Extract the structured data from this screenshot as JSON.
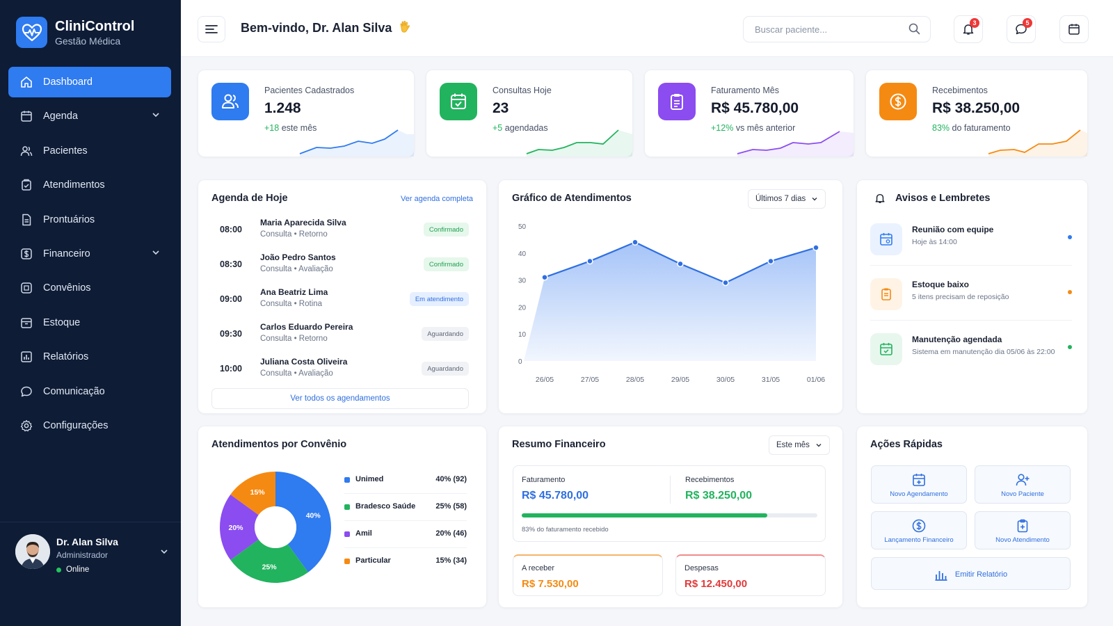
{
  "brand": {
    "name": "CliniControl",
    "subtitle": "Gestão Médica"
  },
  "nav": [
    {
      "label": "Dashboard",
      "icon": "home-icon",
      "active": true
    },
    {
      "label": "Agenda",
      "icon": "calendar-icon",
      "expandable": true
    },
    {
      "label": "Pacientes",
      "icon": "users-icon"
    },
    {
      "label": "Atendimentos",
      "icon": "clipboard-check-icon"
    },
    {
      "label": "Prontuários",
      "icon": "document-icon"
    },
    {
      "label": "Financeiro",
      "icon": "dollar-icon",
      "expandable": true
    },
    {
      "label": "Convênios",
      "icon": "card-icon"
    },
    {
      "label": "Estoque",
      "icon": "box-icon"
    },
    {
      "label": "Relatórios",
      "icon": "bar-chart-icon"
    },
    {
      "label": "Comunicação",
      "icon": "chat-icon"
    },
    {
      "label": "Configurações",
      "icon": "gear-icon"
    }
  ],
  "user": {
    "name": "Dr. Alan Silva",
    "role": "Administrador",
    "status": "Online"
  },
  "header": {
    "welcome": "Bem-vindo, Dr. Alan Silva",
    "search_placeholder": "Buscar paciente...",
    "notifications_count": "3",
    "messages_count": "5"
  },
  "stats": [
    {
      "label": "Pacientes Cadastrados",
      "value": "1.248",
      "delta": "+18",
      "delta_text": "este mês",
      "color": "#2f7bf0",
      "icon": "users-icon"
    },
    {
      "label": "Consultas Hoje",
      "value": "23",
      "delta": "+5",
      "delta_text": "agendadas",
      "color": "#22b35e",
      "icon": "calendar-check-icon"
    },
    {
      "label": "Faturamento Mês",
      "value": "R$ 45.780,00",
      "delta": "+12%",
      "delta_text": "vs mês anterior",
      "color": "#8b4cf0",
      "icon": "clipboard-icon"
    },
    {
      "label": "Recebimentos",
      "value": "R$ 38.250,00",
      "delta": "83%",
      "delta_text": "do faturamento",
      "color": "#f58a12",
      "icon": "dollar-coin-icon"
    }
  ],
  "agenda": {
    "title": "Agenda de Hoje",
    "link": "Ver agenda completa",
    "items": [
      {
        "time": "08:00",
        "name": "Maria Aparecida Silva",
        "desc": "Consulta • Retorno",
        "status": "Confirmado",
        "kind": "ok"
      },
      {
        "time": "08:30",
        "name": "João Pedro Santos",
        "desc": "Consulta • Avaliação",
        "status": "Confirmado",
        "kind": "ok"
      },
      {
        "time": "09:00",
        "name": "Ana Beatriz Lima",
        "desc": "Consulta • Rotina",
        "status": "Em atendimento",
        "kind": "atend"
      },
      {
        "time": "09:30",
        "name": "Carlos Eduardo Pereira",
        "desc": "Consulta • Retorno",
        "status": "Aguardando",
        "kind": "wait"
      },
      {
        "time": "10:00",
        "name": "Juliana Costa Oliveira",
        "desc": "Consulta • Avaliação",
        "status": "Aguardando",
        "kind": "wait"
      }
    ],
    "button": "Ver todos os agendamentos"
  },
  "atendimentos": {
    "title": "Gráfico de Atendimentos",
    "period": "Últimos 7 dias"
  },
  "avisos": {
    "title": "Avisos e Lembretes",
    "items": [
      {
        "title": "Reunião com equipe",
        "sub": "Hoje às 14:00",
        "color": "#2f7bf0",
        "bg": "#eaf2ff",
        "icon": "calendar-icon"
      },
      {
        "title": "Estoque baixo",
        "sub": "5 itens precisam de reposição",
        "color": "#f58a12",
        "bg": "#fff3e6",
        "icon": "clipboard-icon"
      },
      {
        "title": "Manutenção agendada",
        "sub": "Sistema em manutenção dia 05/06 às 22:00",
        "color": "#22b35e",
        "bg": "#e8f7ee",
        "icon": "calendar-check-icon"
      }
    ]
  },
  "convenios": {
    "title": "Atendimentos por Convênio"
  },
  "financeiro": {
    "title": "Resumo Financeiro",
    "period": "Este mês",
    "faturamento_label": "Faturamento",
    "faturamento": "R$ 45.780,00",
    "recebimentos_label": "Recebimentos",
    "recebimentos": "R$ 38.250,00",
    "progress": 0.83,
    "progress_text": "83% do faturamento recebido",
    "receber_label": "A receber",
    "receber": "R$ 7.530,00",
    "despesas_label": "Despesas",
    "despesas": "R$ 12.450,00"
  },
  "acoes": {
    "title": "Ações Rápidas",
    "items": [
      {
        "label": "Novo Agendamento",
        "icon": "calendar-plus-icon"
      },
      {
        "label": "Novo Paciente",
        "icon": "user-plus-icon"
      },
      {
        "label": "Lançamento Financeiro",
        "icon": "dollar-icon"
      },
      {
        "label": "Novo Atendimento",
        "icon": "clipboard-plus-icon"
      },
      {
        "label": "Emitir Relatório",
        "icon": "bar-chart-icon"
      }
    ]
  },
  "chart_data": [
    {
      "type": "area",
      "categories": [
        "26/05",
        "27/05",
        "28/05",
        "29/05",
        "30/05",
        "31/05",
        "01/06"
      ],
      "values": [
        31,
        37,
        44,
        36,
        29,
        37,
        42
      ],
      "ylim": [
        0,
        50
      ],
      "yticks": [
        0,
        10,
        20,
        30,
        40,
        50
      ],
      "color": "#2f6fe0",
      "grid": false
    },
    {
      "type": "pie",
      "slices": [
        {
          "name": "Unimed",
          "percent": 40,
          "count": 92,
          "label": "40% (92)",
          "color": "#2f7bf0"
        },
        {
          "name": "Bradesco Saúde",
          "percent": 25,
          "count": 58,
          "label": "25% (58)",
          "color": "#22b35e"
        },
        {
          "name": "Amil",
          "percent": 20,
          "count": 46,
          "label": "20% (46)",
          "color": "#8b4cf0"
        },
        {
          "name": "Particular",
          "percent": 15,
          "count": 34,
          "label": "15% (34)",
          "color": "#f58a12"
        }
      ]
    }
  ]
}
